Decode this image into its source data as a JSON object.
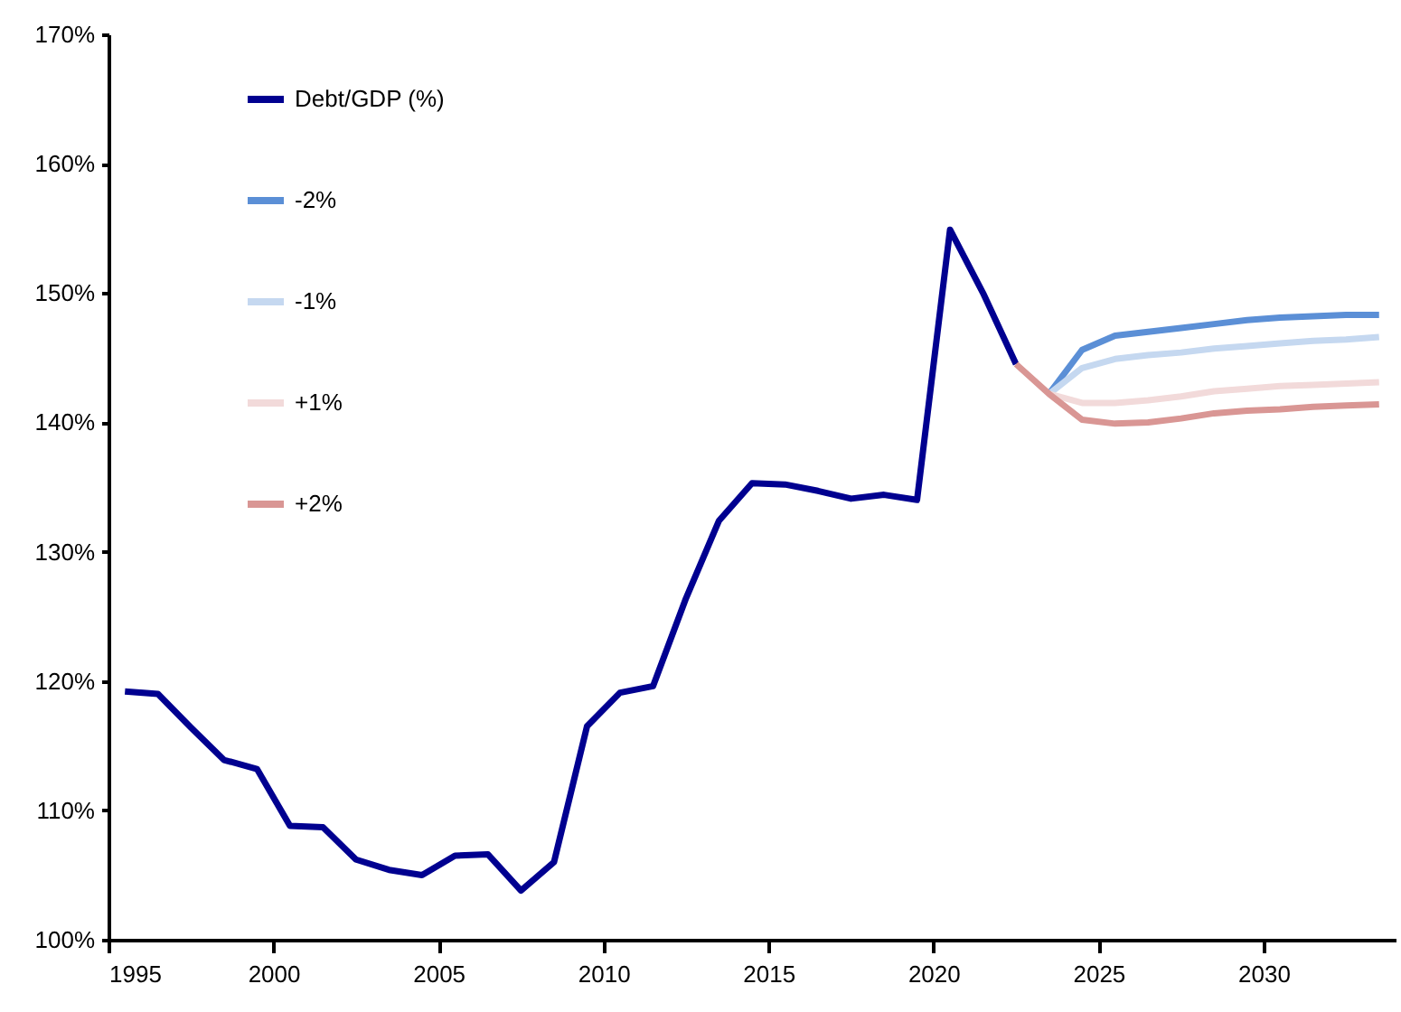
{
  "chart_data": {
    "type": "line",
    "xlim": [
      1995,
      2034
    ],
    "ylim": [
      100,
      170
    ],
    "xticks": [
      1995,
      2000,
      2005,
      2010,
      2015,
      2020,
      2025,
      2030
    ],
    "yticks": [
      {
        "value": 100,
        "label": "100%"
      },
      {
        "value": 110,
        "label": "110%"
      },
      {
        "value": 120,
        "label": "120%"
      },
      {
        "value": 130,
        "label": "130%"
      },
      {
        "value": 140,
        "label": "140%"
      },
      {
        "value": 150,
        "label": "150%"
      },
      {
        "value": 160,
        "label": "160%"
      },
      {
        "value": 170,
        "label": "170%"
      }
    ],
    "grid": false,
    "legend": "top left",
    "series": [
      {
        "name": "Debt/GDP (%)",
        "color": "#000090",
        "x": [
          1995.5,
          1996.5,
          1997.5,
          1998.5,
          1999.5,
          2000.5,
          2001.5,
          2002.5,
          2003.5,
          2004.5,
          2005.5,
          2006.5,
          2007.5,
          2008.5,
          2009.5,
          2010.5,
          2011.5,
          2012.5,
          2013.5,
          2014.5,
          2015.5,
          2016.5,
          2017.5,
          2018.5,
          2019.5,
          2020.5,
          2021.5,
          2022.5
        ],
        "values": [
          119.2,
          119.0,
          116.4,
          113.9,
          113.2,
          108.8,
          108.7,
          106.2,
          105.4,
          105.0,
          106.5,
          106.6,
          103.8,
          106.0,
          116.5,
          119.1,
          119.6,
          126.4,
          132.4,
          135.3,
          135.2,
          134.7,
          134.1,
          134.4,
          134.0,
          154.9,
          150.0,
          144.5
        ]
      },
      {
        "name": "-2%",
        "color": "#5b8fd6",
        "x": [
          2023.5,
          2024.5,
          2025.5,
          2026.5,
          2027.5,
          2028.5,
          2029.5,
          2030.5,
          2031.5,
          2032.5,
          2033.5
        ],
        "values": [
          142.2,
          145.6,
          146.7,
          147.0,
          147.3,
          147.6,
          147.9,
          148.1,
          148.2,
          148.3,
          148.3
        ]
      },
      {
        "name": "-1%",
        "color": "#c5d8f0",
        "x": [
          2023.5,
          2024.5,
          2025.5,
          2026.5,
          2027.5,
          2028.5,
          2029.5,
          2030.5,
          2031.5,
          2032.5,
          2033.5
        ],
        "values": [
          142.2,
          144.2,
          144.9,
          145.2,
          145.4,
          145.7,
          145.9,
          146.1,
          146.3,
          146.4,
          146.6
        ]
      },
      {
        "name": "+1%",
        "color": "#f2dada",
        "x": [
          2023.5,
          2024.5,
          2025.5,
          2026.5,
          2027.5,
          2028.5,
          2029.5,
          2030.5,
          2031.5,
          2032.5,
          2033.5
        ],
        "values": [
          142.2,
          141.5,
          141.5,
          141.7,
          142.0,
          142.4,
          142.6,
          142.8,
          142.9,
          143.0,
          143.1
        ]
      },
      {
        "name": "+2%",
        "color": "#d99694",
        "x": [
          2022.5,
          2023.5,
          2024.5,
          2025.5,
          2026.5,
          2027.5,
          2028.5,
          2029.5,
          2030.5,
          2031.5,
          2032.5,
          2033.5
        ],
        "values": [
          144.5,
          142.2,
          140.2,
          139.9,
          140.0,
          140.3,
          140.7,
          140.9,
          141.0,
          141.2,
          141.3,
          141.4
        ]
      }
    ]
  }
}
